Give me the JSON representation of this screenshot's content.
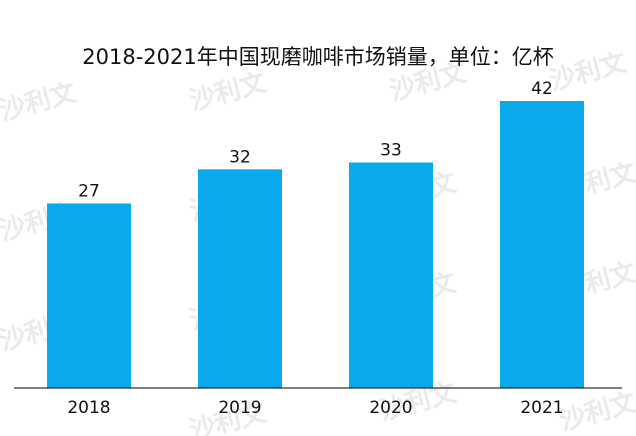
{
  "chart_data": {
    "type": "bar",
    "title": "2018-2021年中国现磨咖啡市场销量，单位：亿杯",
    "categories": [
      "2018",
      "2019",
      "2020",
      "2021"
    ],
    "values": [
      27,
      32,
      33,
      42
    ],
    "value_labels": [
      "27",
      "32",
      "33",
      "42"
    ],
    "ylim": [
      0,
      42
    ],
    "xlabel": "",
    "ylabel": "",
    "grid": false,
    "legend": "none",
    "bar_color": "#0aa9ec",
    "axis_color": "#000000"
  },
  "watermark": {
    "text": "沙利文",
    "color": "#d6d6d6"
  }
}
